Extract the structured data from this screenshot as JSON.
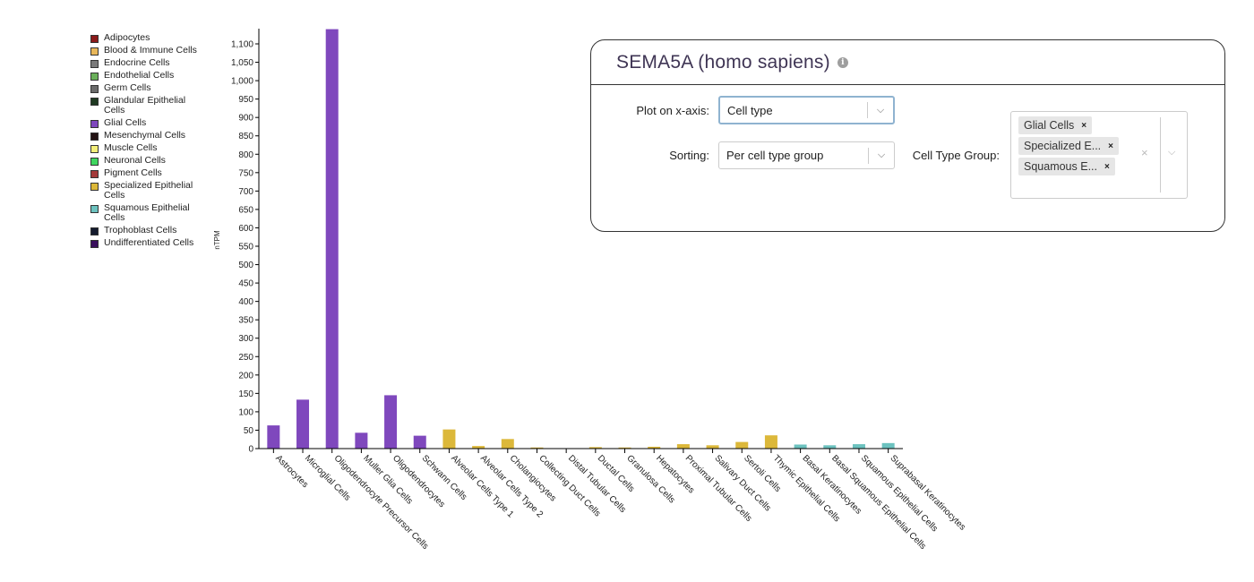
{
  "legend": [
    {
      "label": "Adipocytes",
      "color": "#8b1a1a"
    },
    {
      "label": "Blood & Immune Cells",
      "color": "#e8b75a"
    },
    {
      "label": "Endocrine Cells",
      "color": "#7a7a7a"
    },
    {
      "label": "Endothelial Cells",
      "color": "#6aaf5a"
    },
    {
      "label": "Germ Cells",
      "color": "#6b6b6b"
    },
    {
      "label": "Glandular Epithelial Cells",
      "color": "#1f3a22"
    },
    {
      "label": "Glial Cells",
      "color": "#7f48bd"
    },
    {
      "label": "Mesenchymal Cells",
      "color": "#241314"
    },
    {
      "label": "Muscle Cells",
      "color": "#f4ef7a"
    },
    {
      "label": "Neuronal Cells",
      "color": "#3fd65f"
    },
    {
      "label": "Pigment Cells",
      "color": "#a33a3a"
    },
    {
      "label": "Specialized Epithelial Cells",
      "color": "#dcb83a"
    },
    {
      "label": "Squamous Epithelial Cells",
      "color": "#6cc2bf"
    },
    {
      "label": "Trophoblast Cells",
      "color": "#141b2e"
    },
    {
      "label": "Undifferentiated Cells",
      "color": "#3a0f5c"
    }
  ],
  "chart_data": {
    "type": "bar",
    "ylabel": "nTPM",
    "ylim": [
      0,
      1100
    ],
    "yticks": [
      "0",
      "50",
      "100",
      "150",
      "200",
      "250",
      "300",
      "350",
      "400",
      "450",
      "500",
      "550",
      "600",
      "650",
      "700",
      "750",
      "800",
      "850",
      "900",
      "950",
      "1,000",
      "1,050",
      "1,100"
    ],
    "categories": [
      "Astrocytes",
      "Microglial Cells",
      "Oligodendrocyte Precursor Cells",
      "Muller Glia Cells",
      "Oligodendrocytes",
      "Schwann Cells",
      "Alveolar Cells Type 1",
      "Alveolar Cells Type 2",
      "Cholangiocytes",
      "Collecting Duct Cells",
      "Distal Tubular Cells",
      "Ductal Cells",
      "Granulosa Cells",
      "Hepatocytes",
      "Proximal Tubular Cells",
      "Salivary Duct Cells",
      "Sertoli Cells",
      "Thymic Epithelial Cells",
      "Basal Keratinocytes",
      "Basal Squamous Epithelial Cells",
      "Squamous Epithelial Cells",
      "Suprabasal Keratinocytes"
    ],
    "values": [
      63,
      133,
      1140,
      43,
      145,
      35,
      52,
      7,
      26,
      3,
      1,
      4,
      3,
      5,
      12,
      9,
      18,
      36,
      11,
      9,
      12,
      15
    ],
    "groups": [
      "Glial Cells",
      "Glial Cells",
      "Glial Cells",
      "Glial Cells",
      "Glial Cells",
      "Glial Cells",
      "Specialized Epithelial Cells",
      "Specialized Epithelial Cells",
      "Specialized Epithelial Cells",
      "Specialized Epithelial Cells",
      "Specialized Epithelial Cells",
      "Specialized Epithelial Cells",
      "Specialized Epithelial Cells",
      "Specialized Epithelial Cells",
      "Specialized Epithelial Cells",
      "Specialized Epithelial Cells",
      "Specialized Epithelial Cells",
      "Specialized Epithelial Cells",
      "Squamous Epithelial Cells",
      "Squamous Epithelial Cells",
      "Squamous Epithelial Cells",
      "Squamous Epithelial Cells"
    ],
    "group_colors": {
      "Glial Cells": "#7f48bd",
      "Specialized Epithelial Cells": "#dcb83a",
      "Squamous Epithelial Cells": "#6cc2bf"
    }
  },
  "panel": {
    "title": "SEMA5A (homo sapiens)",
    "info_icon": "info-icon",
    "xaxis_label": "Plot on x-axis:",
    "xaxis_value": "Cell type",
    "sorting_label": "Sorting:",
    "sorting_value": "Per cell type group",
    "group_label": "Cell Type Group:",
    "chips": [
      "Glial Cells",
      "Specialized E...",
      "Squamous E..."
    ],
    "chip_remove": "×",
    "clear": "×",
    "chevron": "⌄"
  }
}
